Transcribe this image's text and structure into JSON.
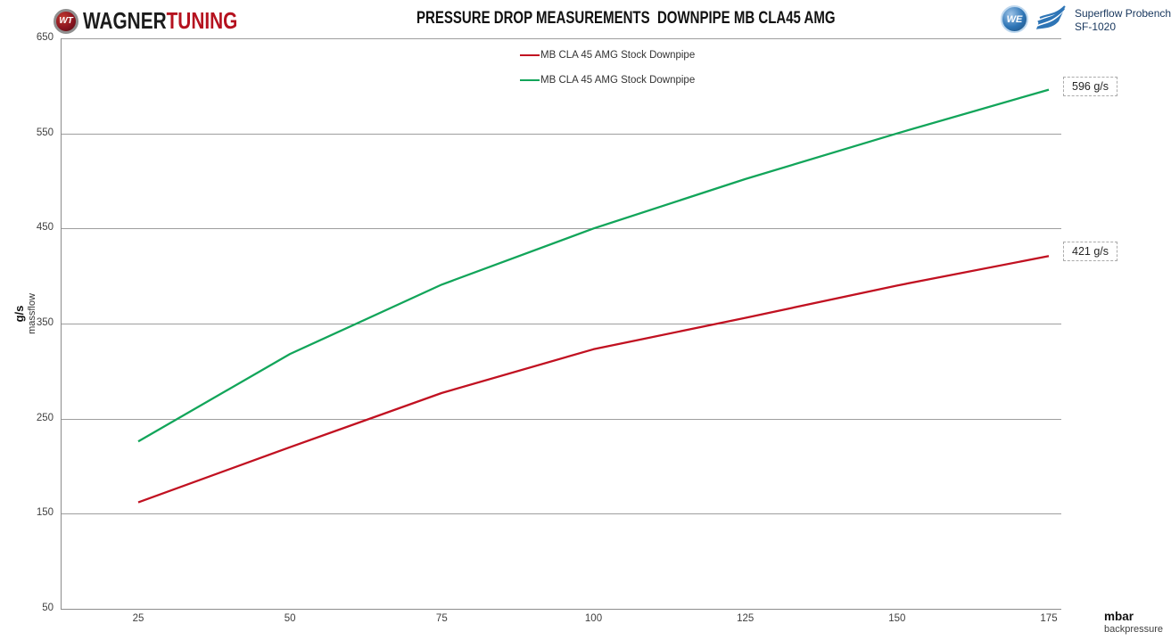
{
  "header": {
    "brand": {
      "icon_text": "WT",
      "name_left": "WAGNER",
      "name_right": "TUNING"
    },
    "title": "PRESSURE DROP MEASUREMENTS  DOWNPIPE MB CLA45 AMG",
    "bench": {
      "globe_text": "WE",
      "line1": "Superflow Probench",
      "line2": "SF-1020"
    }
  },
  "chart_data": {
    "type": "line",
    "x": [
      25,
      50,
      75,
      100,
      125,
      150,
      175
    ],
    "series": [
      {
        "name": "MB CLA 45 AMG Stock Downpipe",
        "color": "#c11121",
        "values": [
          162,
          220,
          277,
          323,
          356,
          390,
          421
        ],
        "end_label": "421 g/s"
      },
      {
        "name": "MB CLA 45 AMG Stock Downpipe",
        "color": "#12a55a",
        "values": [
          226,
          318,
          391,
          450,
          502,
          550,
          596
        ],
        "end_label": "596 g/s"
      }
    ],
    "title": "PRESSURE DROP MEASUREMENTS  DOWNPIPE MB CLA45 AMG",
    "xlabel": "mbar",
    "xlabel_sub": "backpressure",
    "ylabel": "g/s",
    "ylabel_sub": "massflow",
    "xlim": [
      12,
      177
    ],
    "ylim": [
      50,
      650
    ],
    "yticks": [
      650,
      550,
      450,
      350,
      250,
      150,
      50
    ],
    "xticks": [
      25,
      50,
      75,
      100,
      125,
      150,
      175
    ],
    "grid": "horizontal",
    "legend_position": "top-center"
  },
  "colors": {
    "grid": "#9e9e9e",
    "axis": "#8c8c8c",
    "red_series": "#c11121",
    "green_series": "#12a55a",
    "brand_red": "#b5121f",
    "bench_blue": "#2e75b6",
    "bench_text": "#17365d"
  }
}
